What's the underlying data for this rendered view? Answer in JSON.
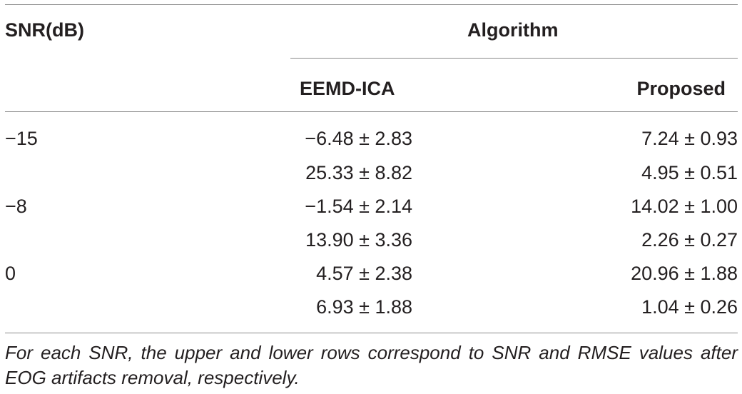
{
  "table": {
    "header": {
      "snr": "SNR(dB)",
      "algorithm": "Algorithm",
      "eemd_ica": "EEMD-ICA",
      "proposed": "Proposed"
    },
    "rows": [
      {
        "snr": "−15",
        "eemd_ica": "−6.48 ± 2.83",
        "proposed": "7.24 ± 0.93"
      },
      {
        "snr": "",
        "eemd_ica": "25.33 ± 8.82",
        "proposed": "4.95 ± 0.51"
      },
      {
        "snr": "−8",
        "eemd_ica": "−1.54 ± 2.14",
        "proposed": "14.02 ± 1.00"
      },
      {
        "snr": "",
        "eemd_ica": "13.90 ± 3.36",
        "proposed": "2.26 ± 0.27"
      },
      {
        "snr": "0",
        "eemd_ica": "4.57 ± 2.38",
        "proposed": "20.96 ± 1.88"
      },
      {
        "snr": "",
        "eemd_ica": "6.93 ± 1.88",
        "proposed": "1.04 ± 0.26"
      }
    ],
    "footnote": "For each SNR, the upper and lower rows correspond to SNR and RMSE values after EOG artifacts removal, respectively."
  }
}
